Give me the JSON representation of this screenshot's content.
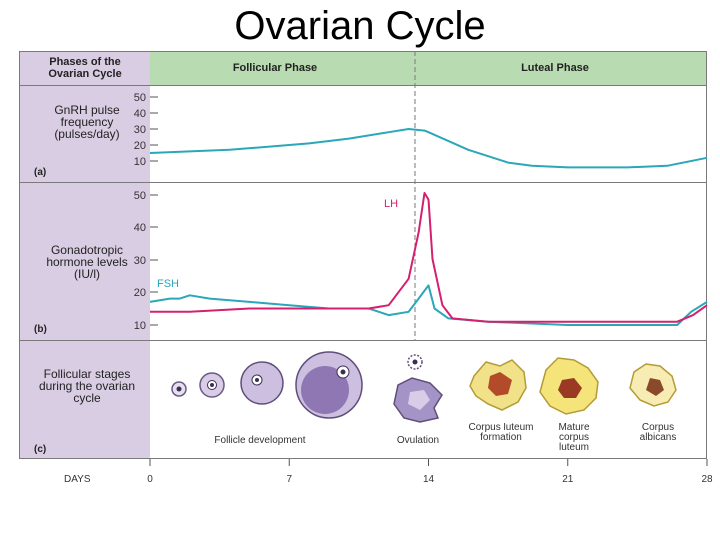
{
  "title": "Ovarian Cycle",
  "header": {
    "phases_label": "Phases of the Ovarian Cycle",
    "follicular": "Follicular Phase",
    "luteal": "Luteal Phase"
  },
  "panels": {
    "a": {
      "letter": "(a)",
      "label": "GnRH pulse frequency (pulses/day)"
    },
    "b": {
      "letter": "(b)",
      "label": "Gonadotropic hormone levels (IU/l)"
    },
    "c": {
      "letter": "(c)",
      "label": "Follicular stages during the ovarian cycle"
    }
  },
  "colors": {
    "fsh": "#2aa7b8",
    "lh": "#d4206e",
    "gnrh": "#2aa7b8",
    "sidebar": "#d9cde3",
    "header": "#b9dbb1"
  },
  "chart_data": [
    {
      "type": "line",
      "panel": "a",
      "ylabel": "GnRH pulse frequency (pulses/day)",
      "yticks": [
        10,
        20,
        30,
        40,
        50
      ],
      "ylim": [
        5,
        50
      ],
      "xlim": [
        0,
        28
      ],
      "series": [
        {
          "x": [
            0,
            2,
            4,
            6,
            8,
            10,
            12,
            13,
            13.8,
            14,
            16,
            18,
            19.2,
            21,
            24,
            26,
            28
          ],
          "y": [
            15,
            16,
            17,
            19,
            21,
            24,
            28,
            30,
            29,
            28,
            17,
            9,
            7,
            6,
            6,
            7,
            12
          ]
        }
      ]
    },
    {
      "type": "line",
      "panel": "b",
      "ylabel": "Gonadotropic hormone levels (IU/l)",
      "yticks": [
        10,
        20,
        30,
        40,
        50
      ],
      "ylim": [
        8,
        58
      ],
      "xlim": [
        0,
        28
      ],
      "series": [
        {
          "name": "FSH",
          "x": [
            0,
            1,
            1.5,
            2,
            3,
            5,
            7,
            9,
            11,
            12,
            13,
            13.5,
            14,
            14.3,
            15,
            17,
            21,
            24,
            26.5,
            27.2,
            28
          ],
          "y": [
            17,
            18,
            18,
            19,
            18,
            17,
            16,
            15,
            15,
            13,
            14,
            18,
            22,
            15,
            12,
            11,
            10,
            10,
            10,
            14,
            17
          ]
        },
        {
          "name": "LH",
          "x": [
            0,
            2,
            5,
            8,
            11,
            12,
            13,
            13.5,
            13.8,
            14,
            14.2,
            14.7,
            15.2,
            17,
            21,
            24,
            26.5,
            27.3,
            28
          ],
          "y": [
            14,
            14,
            15,
            15,
            15,
            16,
            24,
            38,
            50,
            48,
            30,
            16,
            12,
            11,
            11,
            11,
            11,
            13,
            16
          ]
        }
      ]
    }
  ],
  "series_labels": {
    "lh": "LH",
    "fsh": "FSH"
  },
  "stages": {
    "follicle_development": "Follicle development",
    "ovulation": "Ovulation",
    "corpus_luteum_formation": "Corpus luteum formation",
    "mature_corpus_luteum": "Mature corpus luteum",
    "corpus_albicans": "Corpus albicans"
  },
  "days": {
    "label": "DAYS",
    "ticks": [
      0,
      7,
      14,
      21,
      28
    ]
  }
}
